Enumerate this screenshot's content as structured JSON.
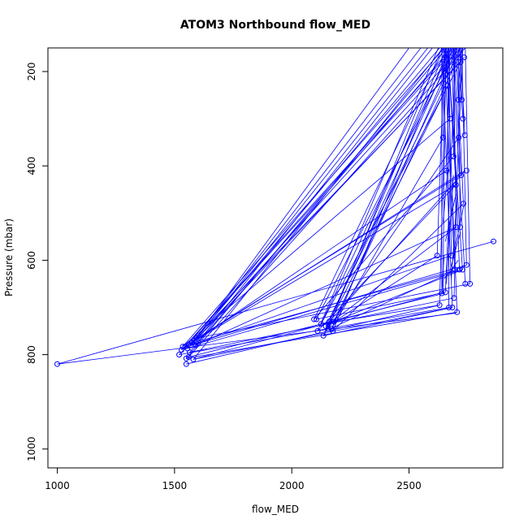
{
  "chart_data": {
    "type": "line",
    "title": "ATOM3 Northbound flow_MED",
    "xlabel": "flow_MED",
    "ylabel": "Pressure (mbar)",
    "xlim": [
      960,
      2900
    ],
    "ylim": [
      1040,
      150
    ],
    "y_reversed": true,
    "xticks": [
      1000,
      1500,
      2000,
      2500
    ],
    "yticks": [
      200,
      400,
      600,
      800,
      1000
    ],
    "grid": false,
    "legend": "none",
    "line_color": "#0000ff",
    "marker": "open-circle",
    "fan_top_y": 150,
    "points": [
      [
        1000,
        820
      ],
      [
        1520,
        800
      ],
      [
        1530,
        790
      ],
      [
        1535,
        783
      ],
      [
        1545,
        783
      ],
      [
        1550,
        808
      ],
      [
        1550,
        820
      ],
      [
        1555,
        787
      ],
      [
        1560,
        805
      ],
      [
        1565,
        795
      ],
      [
        1570,
        780
      ],
      [
        1575,
        775
      ],
      [
        1580,
        810
      ],
      [
        1585,
        770
      ],
      [
        1590,
        780
      ],
      [
        1595,
        765
      ],
      [
        2095,
        725
      ],
      [
        2105,
        725
      ],
      [
        2110,
        750
      ],
      [
        2125,
        735
      ],
      [
        2135,
        760
      ],
      [
        2145,
        740
      ],
      [
        2155,
        745
      ],
      [
        2160,
        730
      ],
      [
        2170,
        745
      ],
      [
        2175,
        750
      ],
      [
        2180,
        730
      ],
      [
        2620,
        590
      ],
      [
        2630,
        695
      ],
      [
        2640,
        670
      ],
      [
        2645,
        340
      ],
      [
        2650,
        200
      ],
      [
        2655,
        668
      ],
      [
        2660,
        410
      ],
      [
        2665,
        230
      ],
      [
        2670,
        700
      ],
      [
        2675,
        300
      ],
      [
        2680,
        590
      ],
      [
        2685,
        700
      ],
      [
        2690,
        380
      ],
      [
        2692,
        680
      ],
      [
        2695,
        620
      ],
      [
        2700,
        440
      ],
      [
        2700,
        530
      ],
      [
        2705,
        710
      ],
      [
        2710,
        260
      ],
      [
        2712,
        340
      ],
      [
        2715,
        620
      ],
      [
        2718,
        530
      ],
      [
        2720,
        180
      ],
      [
        2722,
        420
      ],
      [
        2725,
        260
      ],
      [
        2728,
        620
      ],
      [
        2730,
        300
      ],
      [
        2732,
        480
      ],
      [
        2735,
        170
      ],
      [
        2738,
        335
      ],
      [
        2740,
        650
      ],
      [
        2745,
        410
      ],
      [
        2745,
        610
      ],
      [
        2760,
        650
      ],
      [
        2860,
        560
      ]
    ],
    "segments": [
      [
        1000,
        820,
        2860,
        560
      ],
      [
        1000,
        820,
        2700,
        712
      ],
      [
        1520,
        800,
        2720,
        180
      ],
      [
        1530,
        790,
        2690,
        150
      ],
      [
        1535,
        783,
        2650,
        150
      ],
      [
        1545,
        783,
        2700,
        150
      ],
      [
        1550,
        808,
        2660,
        150
      ],
      [
        1555,
        787,
        2630,
        150
      ],
      [
        1560,
        805,
        2740,
        150
      ],
      [
        1565,
        795,
        2600,
        150
      ],
      [
        1570,
        780,
        2720,
        150
      ],
      [
        1575,
        775,
        2550,
        150
      ],
      [
        1580,
        810,
        2645,
        150
      ],
      [
        1585,
        770,
        2500,
        150
      ],
      [
        1590,
        780,
        2680,
        150
      ],
      [
        1595,
        765,
        2580,
        150
      ],
      [
        1550,
        820,
        2630,
        695
      ],
      [
        1560,
        805,
        2650,
        670
      ],
      [
        1570,
        780,
        2680,
        590
      ],
      [
        1580,
        810,
        2645,
        668
      ],
      [
        1520,
        800,
        2670,
        700
      ],
      [
        1545,
        783,
        2700,
        440
      ],
      [
        1565,
        795,
        2690,
        680
      ],
      [
        1575,
        775,
        2710,
        620
      ],
      [
        1585,
        770,
        2740,
        410
      ],
      [
        1590,
        780,
        2700,
        530
      ],
      [
        1595,
        765,
        2720,
        420
      ],
      [
        1555,
        787,
        2728,
        620
      ],
      [
        1530,
        790,
        2660,
        410
      ],
      [
        1535,
        783,
        2675,
        300
      ],
      [
        1550,
        808,
        2705,
        710
      ],
      [
        1570,
        780,
        2735,
        170
      ],
      [
        1580,
        810,
        2685,
        700
      ],
      [
        1595,
        765,
        2760,
        650
      ],
      [
        1540,
        785,
        2745,
        610
      ],
      [
        2095,
        725,
        2650,
        150
      ],
      [
        2105,
        725,
        2700,
        150
      ],
      [
        2110,
        750,
        2625,
        150
      ],
      [
        2125,
        735,
        2680,
        150
      ],
      [
        2135,
        760,
        2660,
        150
      ],
      [
        2145,
        740,
        2720,
        150
      ],
      [
        2155,
        745,
        2640,
        150
      ],
      [
        2160,
        730,
        2690,
        150
      ],
      [
        2170,
        745,
        2705,
        150
      ],
      [
        2175,
        750,
        2670,
        150
      ],
      [
        2180,
        730,
        2730,
        150
      ],
      [
        2095,
        725,
        2690,
        380
      ],
      [
        2110,
        750,
        2700,
        440
      ],
      [
        2125,
        735,
        2720,
        180
      ],
      [
        2135,
        760,
        2665,
        230
      ],
      [
        2145,
        740,
        2700,
        530
      ],
      [
        2155,
        745,
        2712,
        340
      ],
      [
        2160,
        730,
        2740,
        410
      ],
      [
        2170,
        745,
        2645,
        340
      ],
      [
        2180,
        730,
        2728,
        620
      ],
      [
        2105,
        725,
        2655,
        668
      ],
      [
        2125,
        735,
        2630,
        695
      ],
      [
        2135,
        760,
        2685,
        700
      ],
      [
        2150,
        740,
        2620,
        590
      ],
      [
        2175,
        750,
        2732,
        480
      ],
      [
        2165,
        745,
        2745,
        610
      ],
      [
        2620,
        590,
        2650,
        150
      ],
      [
        2630,
        695,
        2660,
        150
      ],
      [
        2640,
        670,
        2640,
        150
      ],
      [
        2645,
        668,
        2655,
        150
      ],
      [
        2655,
        668,
        2700,
        150
      ],
      [
        2670,
        700,
        2665,
        150
      ],
      [
        2680,
        590,
        2670,
        150
      ],
      [
        2685,
        700,
        2640,
        150
      ],
      [
        2692,
        680,
        2720,
        150
      ],
      [
        2695,
        620,
        2650,
        150
      ],
      [
        2700,
        530,
        2690,
        150
      ],
      [
        2705,
        710,
        2660,
        150
      ],
      [
        2715,
        620,
        2680,
        150
      ],
      [
        2718,
        530,
        2710,
        150
      ],
      [
        2728,
        620,
        2665,
        150
      ],
      [
        2732,
        480,
        2700,
        150
      ],
      [
        2740,
        650,
        2685,
        150
      ],
      [
        2745,
        610,
        2725,
        150
      ],
      [
        2760,
        650,
        2740,
        150
      ],
      [
        2645,
        340,
        2650,
        150
      ],
      [
        2660,
        410,
        2675,
        150
      ],
      [
        2675,
        300,
        2655,
        150
      ],
      [
        2690,
        380,
        2695,
        150
      ],
      [
        2700,
        440,
        2665,
        150
      ],
      [
        2710,
        260,
        2700,
        150
      ],
      [
        2712,
        340,
        2730,
        150
      ],
      [
        2722,
        420,
        2690,
        150
      ],
      [
        2725,
        260,
        2715,
        150
      ],
      [
        2730,
        300,
        2705,
        150
      ],
      [
        2738,
        335,
        2720,
        150
      ],
      [
        2640,
        670,
        2650,
        590
      ],
      [
        2660,
        650,
        2675,
        520
      ],
      [
        2680,
        640,
        2700,
        500
      ],
      [
        2665,
        600,
        2690,
        420
      ],
      [
        2645,
        520,
        2670,
        380
      ],
      [
        2655,
        560,
        2700,
        460
      ],
      [
        2675,
        620,
        2720,
        540
      ],
      [
        2690,
        590,
        2735,
        480
      ],
      [
        2650,
        640,
        2710,
        600
      ]
    ]
  }
}
